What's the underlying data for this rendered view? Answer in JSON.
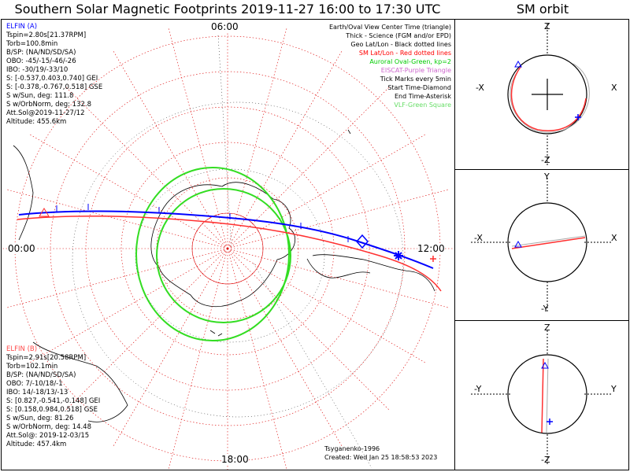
{
  "title": "Southern Solar Magnetic Footprints 2019-11-27 16:00 to 17:30 UTC",
  "sm_title": "SM orbit",
  "mlt_labels": {
    "top": "06:00",
    "bottom": "18:00",
    "left": "00:00",
    "right": "12:00"
  },
  "elfin_a": {
    "header": "ELFIN (A)",
    "color": "#0000ff",
    "lines": [
      "Tspin=2.80s[21.37RPM]",
      "Torb=100.8min",
      "B/SP: (NA/ND/SD/SA)",
      "OBO: -45/-15/-46/-26",
      "IBO: -30/19/-33/10",
      "S: [-0.537,0.403,0.740] GEI",
      "S: [-0.378,-0.767,0.518] GSE",
      "S w/Sun, deg: 111.8",
      "S w/OrbNorm, deg: 132.8",
      "Att.Sol@2019-11-27/12",
      "Altitude: 455.6km"
    ]
  },
  "elfin_b": {
    "header": "ELFIN (B)",
    "color": "#ff4b4b",
    "lines": [
      "Tspin=2.91s[20.58RPM]",
      "Torb=102.1min",
      "B/SP: (NA/ND/SD/SA)",
      "OBO: 7/-10/18/-1",
      "IBO: 14/-18/13/-13",
      "S: [0.827,-0.541,-0.148] GEI",
      "S: [0.158,0.984,0.518] GSE",
      "S w/Sun, deg: 81.26",
      "S w/OrbNorm, deg: 14.48",
      "Att.Sol@: 2019-12-03/15",
      "Altitude: 457.4km"
    ]
  },
  "legend": [
    {
      "text": "Earth/Oval View Center Time (triangle)",
      "color": "#000000"
    },
    {
      "text": "Thick - Science (FGM and/or EPD)",
      "color": "#000000"
    },
    {
      "text": "Geo Lat/Lon - Black dotted lines",
      "color": "#000000"
    },
    {
      "text": "SM Lat/Lon - Red dotted lines",
      "color": "#ff0000"
    },
    {
      "text": "Auroral Oval-Green, kp=2",
      "color": "#00cc00"
    },
    {
      "text": "EISCAT-Purple Triangle",
      "color": "#cc66cc"
    },
    {
      "text": "Tick Marks every 5min",
      "color": "#000000"
    },
    {
      "text": "Start Time-Diamond",
      "color": "#000000"
    },
    {
      "text": "End Time-Asterisk",
      "color": "#000000"
    },
    {
      "text": "VLF-Green Square",
      "color": "#66dd66"
    }
  ],
  "footer": {
    "model": "Tsyganenko-1996",
    "created": "Created: Wed Jan 25 18:58:53 2023"
  },
  "sm_panels": [
    {
      "top": "Z",
      "bottom": "-Z",
      "left": "-X",
      "right": "X"
    },
    {
      "top": "Y",
      "bottom": "-Y",
      "left": "-X",
      "right": "X"
    },
    {
      "top": "Z",
      "bottom": "-Z",
      "left": "-Y",
      "right": "Y"
    }
  ],
  "chart_data": {
    "type": "scatter",
    "title": "Southern Solar Magnetic Footprints 2019-11-27 16:00 to 17:30 UTC",
    "projection": "south polar (SM)",
    "series": [
      {
        "name": "ELFIN (A)",
        "color": "#0000ff"
      },
      {
        "name": "ELFIN (B)",
        "color": "#ff4b4b"
      }
    ],
    "auroral_oval_kp": 2,
    "tick_interval_min": 5,
    "grid": true
  }
}
